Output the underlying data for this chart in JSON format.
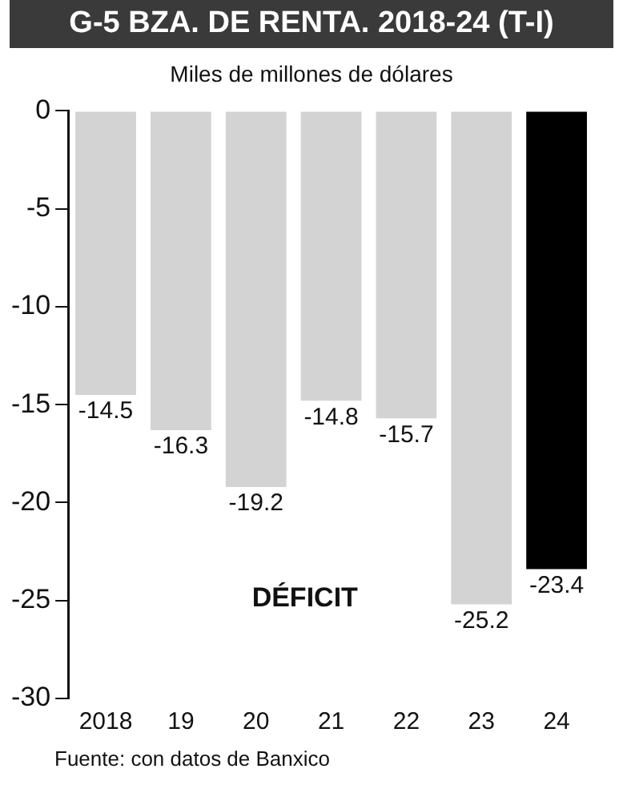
{
  "chart_data": {
    "type": "bar",
    "title": "G-5 BZA. DE RENTA. 2018-24 (T-I)",
    "subtitle": "Miles de millones de dólares",
    "categories": [
      "2018",
      "19",
      "20",
      "21",
      "22",
      "23",
      "24"
    ],
    "values": [
      -14.5,
      -16.3,
      -19.2,
      -14.8,
      -15.7,
      -25.2,
      -23.4
    ],
    "colors": [
      "#d3d3d3",
      "#d3d3d3",
      "#d3d3d3",
      "#d3d3d3",
      "#d3d3d3",
      "#d3d3d3",
      "#000000"
    ],
    "ylim": [
      -30,
      0
    ],
    "yticks": [
      -30,
      -25,
      -20,
      -15,
      -10,
      -5,
      0
    ],
    "grid": false,
    "legend": false,
    "data_labels": true,
    "annotations": [
      "DÉFICIT",
      "Fuente: con datos de Banxico"
    ]
  }
}
